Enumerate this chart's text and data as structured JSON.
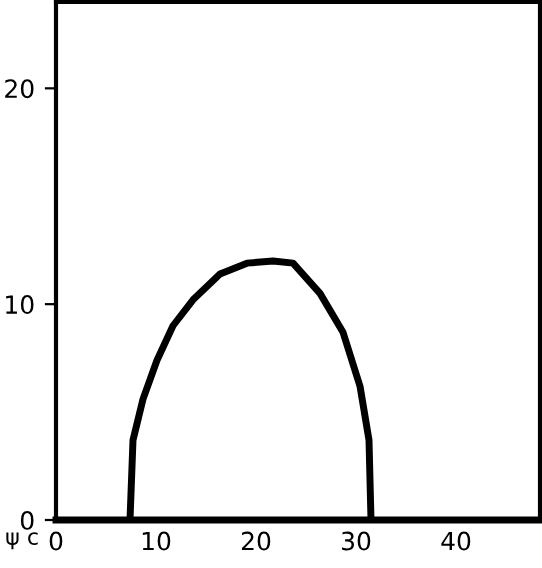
{
  "chart_data": {
    "type": "line",
    "xlabel": "ψ c",
    "x": [
      7.4,
      7.7,
      8.7,
      10.1,
      11.7,
      13.7,
      16.4,
      19.1,
      21.7,
      23.7,
      26.4,
      28.7,
      30.4,
      31.3,
      31.5
    ],
    "series": [
      {
        "color": "#000000",
        "values": [
          0,
          3.7,
          5.6,
          7.4,
          9.0,
          10.2,
          11.4,
          11.9,
          12.0,
          11.9,
          10.5,
          8.7,
          6.2,
          3.7,
          0
        ]
      }
    ],
    "xlim": [
      0,
      48.4
    ],
    "ylim": [
      0,
      24
    ],
    "xticks": [
      0,
      10,
      20,
      30,
      40
    ],
    "yticks": [
      0,
      10,
      20
    ],
    "grid": false,
    "legend": false,
    "marker": "none",
    "line_style": "solid"
  }
}
